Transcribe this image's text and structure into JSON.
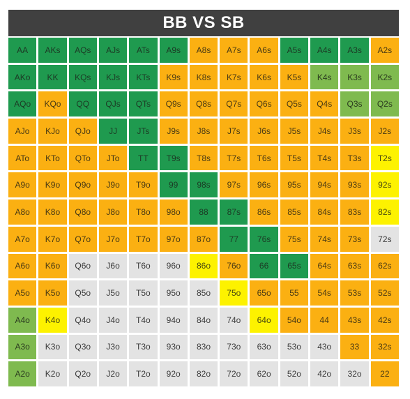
{
  "title": "BB VS SB",
  "colors": {
    "G": "#1f9a4f",
    "L": "#7fba4f",
    "O": "#fbb012",
    "Y": "#fdf200",
    "W": "#e3e3e3"
  },
  "rows": [
    {
      "labels": [
        "AA",
        "AKs",
        "AQs",
        "AJs",
        "ATs",
        "A9s",
        "A8s",
        "A7s",
        "A6s",
        "A5s",
        "A4s",
        "A3s",
        "A2s"
      ],
      "colors": [
        "G",
        "G",
        "G",
        "G",
        "G",
        "G",
        "O",
        "O",
        "O",
        "G",
        "G",
        "G",
        "O"
      ]
    },
    {
      "labels": [
        "AKo",
        "KK",
        "KQs",
        "KJs",
        "KTs",
        "K9s",
        "K8s",
        "K7s",
        "K6s",
        "K5s",
        "K4s",
        "K3s",
        "K2s"
      ],
      "colors": [
        "G",
        "G",
        "G",
        "G",
        "G",
        "O",
        "O",
        "O",
        "O",
        "O",
        "L",
        "L",
        "L"
      ]
    },
    {
      "labels": [
        "AQo",
        "KQo",
        "QQ",
        "QJs",
        "QTs",
        "Q9s",
        "Q8s",
        "Q7s",
        "Q6s",
        "Q5s",
        "Q4s",
        "Q3s",
        "Q2s"
      ],
      "colors": [
        "G",
        "O",
        "G",
        "G",
        "G",
        "O",
        "O",
        "O",
        "O",
        "O",
        "O",
        "L",
        "L"
      ]
    },
    {
      "labels": [
        "AJo",
        "KJo",
        "QJo",
        "JJ",
        "JTs",
        "J9s",
        "J8s",
        "J7s",
        "J6s",
        "J5s",
        "J4s",
        "J3s",
        "J2s"
      ],
      "colors": [
        "O",
        "O",
        "O",
        "G",
        "G",
        "O",
        "O",
        "O",
        "O",
        "O",
        "O",
        "O",
        "O"
      ]
    },
    {
      "labels": [
        "ATo",
        "KTo",
        "QTo",
        "JTo",
        "TT",
        "T9s",
        "T8s",
        "T7s",
        "T6s",
        "T5s",
        "T4s",
        "T3s",
        "T2s"
      ],
      "colors": [
        "O",
        "O",
        "O",
        "O",
        "G",
        "G",
        "O",
        "O",
        "O",
        "O",
        "O",
        "O",
        "Y"
      ]
    },
    {
      "labels": [
        "A9o",
        "K9o",
        "Q9o",
        "J9o",
        "T9o",
        "99",
        "98s",
        "97s",
        "96s",
        "95s",
        "94s",
        "93s",
        "92s"
      ],
      "colors": [
        "O",
        "O",
        "O",
        "O",
        "O",
        "G",
        "G",
        "O",
        "O",
        "O",
        "O",
        "O",
        "Y"
      ]
    },
    {
      "labels": [
        "A8o",
        "K8o",
        "Q8o",
        "J8o",
        "T8o",
        "98o",
        "88",
        "87s",
        "86s",
        "85s",
        "84s",
        "83s",
        "82s"
      ],
      "colors": [
        "O",
        "O",
        "O",
        "O",
        "O",
        "O",
        "G",
        "G",
        "O",
        "O",
        "O",
        "O",
        "Y"
      ]
    },
    {
      "labels": [
        "A7o",
        "K7o",
        "Q7o",
        "J7o",
        "T7o",
        "97o",
        "87o",
        "77",
        "76s",
        "75s",
        "74s",
        "73s",
        "72s"
      ],
      "colors": [
        "O",
        "O",
        "O",
        "O",
        "O",
        "O",
        "O",
        "G",
        "G",
        "O",
        "O",
        "O",
        "W"
      ]
    },
    {
      "labels": [
        "A6o",
        "K6o",
        "Q6o",
        "J6o",
        "T6o",
        "96o",
        "86o",
        "76o",
        "66",
        "65s",
        "64s",
        "63s",
        "62s"
      ],
      "colors": [
        "O",
        "O",
        "W",
        "W",
        "W",
        "W",
        "Y",
        "O",
        "G",
        "G",
        "O",
        "O",
        "O"
      ]
    },
    {
      "labels": [
        "A5o",
        "K5o",
        "Q5o",
        "J5o",
        "T5o",
        "95o",
        "85o",
        "75o",
        "65o",
        "55",
        "54s",
        "53s",
        "52s"
      ],
      "colors": [
        "O",
        "O",
        "W",
        "W",
        "W",
        "W",
        "W",
        "Y",
        "O",
        "O",
        "O",
        "O",
        "O"
      ]
    },
    {
      "labels": [
        "A4o",
        "K4o",
        "Q4o",
        "J4o",
        "T4o",
        "94o",
        "84o",
        "74o",
        "64o",
        "54o",
        "44",
        "43s",
        "42s"
      ],
      "colors": [
        "L",
        "Y",
        "W",
        "W",
        "W",
        "W",
        "W",
        "W",
        "Y",
        "O",
        "O",
        "O",
        "O"
      ]
    },
    {
      "labels": [
        "A3o",
        "K3o",
        "Q3o",
        "J3o",
        "T3o",
        "93o",
        "83o",
        "73o",
        "63o",
        "53o",
        "43o",
        "33",
        "32s"
      ],
      "colors": [
        "L",
        "W",
        "W",
        "W",
        "W",
        "W",
        "W",
        "W",
        "W",
        "W",
        "W",
        "O",
        "O"
      ]
    },
    {
      "labels": [
        "A2o",
        "K2o",
        "Q2o",
        "J2o",
        "T2o",
        "92o",
        "82o",
        "72o",
        "62o",
        "52o",
        "42o",
        "32o",
        "22"
      ],
      "colors": [
        "L",
        "W",
        "W",
        "W",
        "W",
        "W",
        "W",
        "W",
        "W",
        "W",
        "W",
        "W",
        "O"
      ]
    }
  ]
}
